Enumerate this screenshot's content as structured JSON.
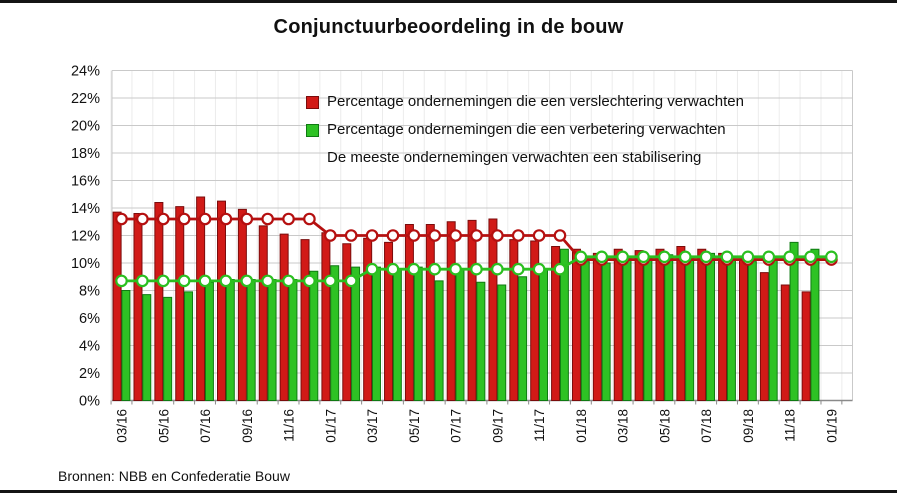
{
  "header": {
    "title": "Conjunctuurbeoordeling in de bouw"
  },
  "footer": {
    "source": "Bronnen: NBB en Confederatie Bouw"
  },
  "legend": {
    "note": "De meeste ondernemingen verwachten een stabilisering"
  },
  "chart_data": {
    "type": "bar",
    "title": "Conjunctuurbeoordeling in de bouw",
    "xlabel": "",
    "ylabel": "",
    "ylim": [
      0,
      24
    ],
    "ytick_step": 2,
    "ytick_labels": [
      "0%",
      "2%",
      "4%",
      "6%",
      "8%",
      "10%",
      "12%",
      "14%",
      "16%",
      "18%",
      "20%",
      "22%",
      "24%"
    ],
    "grid": true,
    "legend_position": "top-center",
    "categories": [
      "03/16",
      "04/16",
      "05/16",
      "06/16",
      "07/16",
      "08/16",
      "09/16",
      "10/16",
      "11/16",
      "12/16",
      "01/17",
      "02/17",
      "03/17",
      "04/17",
      "05/17",
      "06/17",
      "07/17",
      "08/17",
      "09/17",
      "10/17",
      "11/17",
      "12/17",
      "01/18",
      "02/18",
      "03/18",
      "04/18",
      "05/18",
      "06/18",
      "07/18",
      "08/18",
      "09/18",
      "10/18",
      "11/18",
      "12/18",
      "01/19"
    ],
    "x_labeled_every": 2,
    "x_tick_labels": [
      "03/16",
      "05/16",
      "07/16",
      "09/16",
      "11/16",
      "01/17",
      "03/17",
      "05/17",
      "07/17",
      "09/17",
      "11/17",
      "01/18",
      "03/18",
      "05/18",
      "07/18",
      "09/18",
      "11/18",
      "01/19"
    ],
    "series": [
      {
        "name": "Percentage ondernemingen die een verslechtering verwachten",
        "type": "bar",
        "color": "#d11a17",
        "edge_color": "#7a0c0c",
        "values": [
          13.7,
          13.6,
          14.4,
          14.1,
          14.8,
          14.5,
          13.9,
          12.7,
          12.1,
          11.7,
          12.2,
          11.4,
          11.8,
          11.5,
          12.8,
          12.8,
          13.0,
          13.1,
          13.2,
          11.7,
          11.6,
          11.2,
          11.0,
          10.7,
          11.0,
          10.9,
          11.0,
          11.2,
          11.0,
          10.7,
          10.3,
          9.3,
          8.4,
          7.9,
          null
        ]
      },
      {
        "name": "Percentage ondernemingen die een verbetering verwachten",
        "type": "bar",
        "color": "#2ec224",
        "edge_color": "#0f7a12",
        "values": [
          8.0,
          7.7,
          7.5,
          7.9,
          8.6,
          8.8,
          8.8,
          8.8,
          8.8,
          9.4,
          9.8,
          9.7,
          9.7,
          9.6,
          9.7,
          8.7,
          9.5,
          8.6,
          8.4,
          9.0,
          9.6,
          11.0,
          10.1,
          10.0,
          10.5,
          10.5,
          10.6,
          10.5,
          10.7,
          10.2,
          10.1,
          10.2,
          11.5,
          11.0,
          null
        ]
      },
      {
        "name": "red-trend-line",
        "type": "line",
        "color": "#b51010",
        "marker": "circle-white",
        "values": [
          13.2,
          13.2,
          13.2,
          13.2,
          13.2,
          13.2,
          13.2,
          13.2,
          13.2,
          13.2,
          12.0,
          12.0,
          12.0,
          12.0,
          12.0,
          12.0,
          12.0,
          12.0,
          12.0,
          12.0,
          12.0,
          12.0,
          10.25,
          10.25,
          10.25,
          10.25,
          10.25,
          10.25,
          10.25,
          10.25,
          10.25,
          10.25,
          10.25,
          10.25,
          10.25
        ]
      },
      {
        "name": "green-trend-line",
        "type": "line",
        "color": "#2bbf20",
        "marker": "circle-white",
        "values": [
          8.7,
          8.7,
          8.7,
          8.7,
          8.7,
          8.7,
          8.7,
          8.7,
          8.7,
          8.7,
          8.7,
          8.7,
          9.55,
          9.55,
          9.55,
          9.55,
          9.55,
          9.55,
          9.55,
          9.55,
          9.55,
          9.55,
          10.45,
          10.45,
          10.45,
          10.45,
          10.45,
          10.45,
          10.45,
          10.45,
          10.45,
          10.45,
          10.45,
          10.45,
          10.45
        ]
      }
    ]
  }
}
